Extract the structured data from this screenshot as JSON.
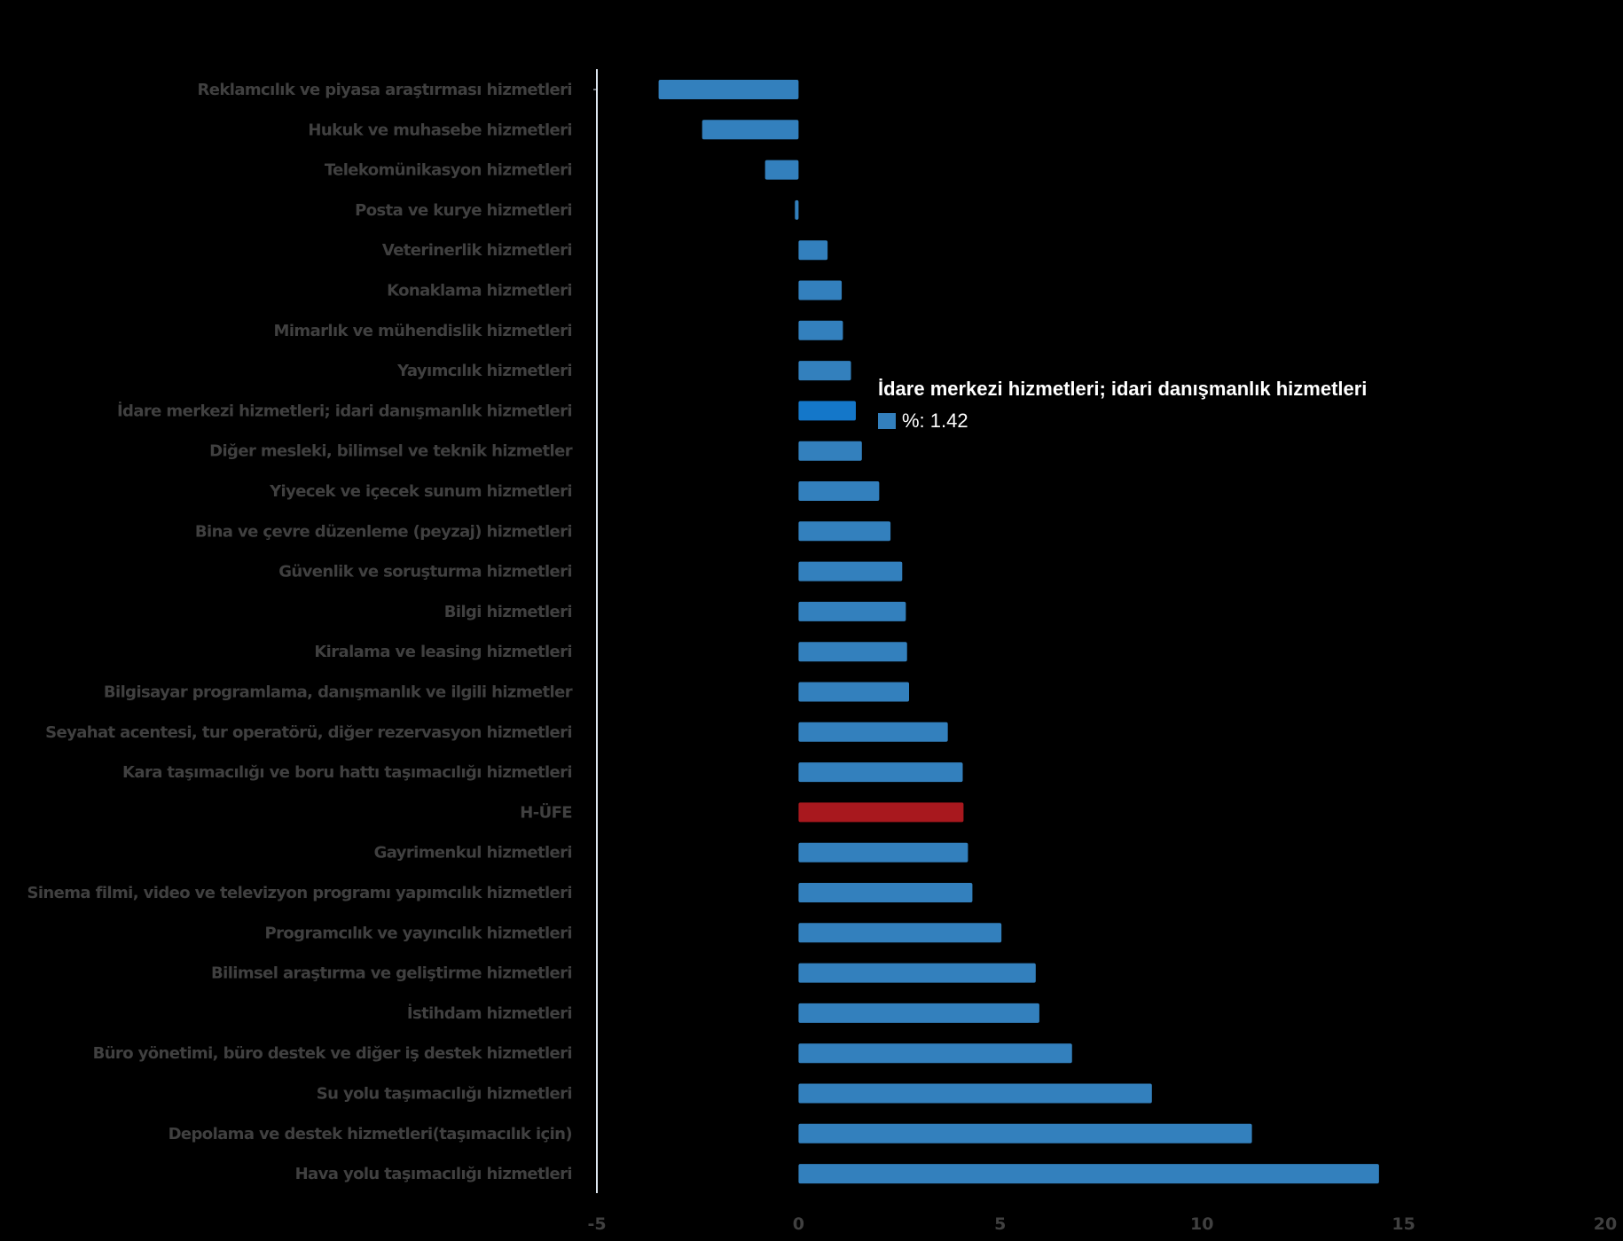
{
  "chart_data": {
    "type": "bar",
    "orientation": "horizontal",
    "title": "",
    "xlabel": "",
    "ylabel": "",
    "xlim": [
      -5,
      20
    ],
    "xticks": [
      -5,
      0,
      5,
      10,
      15,
      20
    ],
    "xtick_labels": [
      "-5",
      "0",
      "5",
      "10",
      "15",
      "20"
    ],
    "grid": false,
    "categories": [
      "Reklamcılık ve piyasa araştırması hizmetleri",
      "Hukuk ve muhasebe hizmetleri",
      "Telekomünikasyon hizmetleri",
      "Posta ve kurye hizmetleri",
      "Veterinerlik hizmetleri",
      "Konaklama hizmetleri",
      "Mimarlık ve mühendislik hizmetleri",
      "Yayımcılık hizmetleri",
      "İdare merkezi hizmetleri; idari danışmanlık hizmetleri",
      "Diğer mesleki, bilimsel ve teknik hizmetler",
      "Yiyecek ve içecek sunum hizmetleri",
      "Bina ve çevre düzenleme (peyzaj) hizmetleri",
      "Güvenlik ve soruşturma hizmetleri",
      "Bilgi hizmetleri",
      "Kiralama ve leasing hizmetleri",
      "Bilgisayar programlama, danışmanlık ve ilgili hizmetler",
      "Seyahat acentesi, tur operatörü, diğer rezervasyon hizmetleri",
      "Kara taşımacılığı ve boru hattı taşımacılığı hizmetleri",
      "H-ÜFE",
      "Gayrimenkul hizmetleri",
      "Sinema filmi, video ve televizyon programı yapımcılık hizmetleri",
      "Programcılık ve yayıncılık hizmetleri",
      "Bilimsel araştırma ve geliştirme hizmetleri",
      "İstihdam hizmetleri",
      "Büro yönetimi, büro destek ve diğer iş destek hizmetleri",
      "Su yolu taşımacılığı hizmetleri",
      "Depolama ve destek hizmetleri(taşımacılık için)",
      "Hava yolu taşımacılığı hizmetleri"
    ],
    "series": [
      {
        "name": "%",
        "values": [
          -3.47,
          -2.39,
          -0.83,
          -0.09,
          0.72,
          1.07,
          1.1,
          1.3,
          1.42,
          1.57,
          2.0,
          2.28,
          2.57,
          2.66,
          2.69,
          2.74,
          3.7,
          4.07,
          4.09,
          4.2,
          4.31,
          5.03,
          5.88,
          5.97,
          6.78,
          8.76,
          11.24,
          14.39
        ]
      }
    ],
    "colors": {
      "default": "#3380bd",
      "highlighted": "#1477c9",
      "reference": "#a8181e",
      "axis": "#dde6ef",
      "label": "#404040"
    },
    "highlighted_index": 8,
    "reference_index": 18,
    "legend": "none",
    "tooltip": {
      "title": "İdare merkezi hizmetleri; idari danışmanlık hizmetleri",
      "series_label": "%",
      "value_text": "%: 1.42"
    }
  }
}
